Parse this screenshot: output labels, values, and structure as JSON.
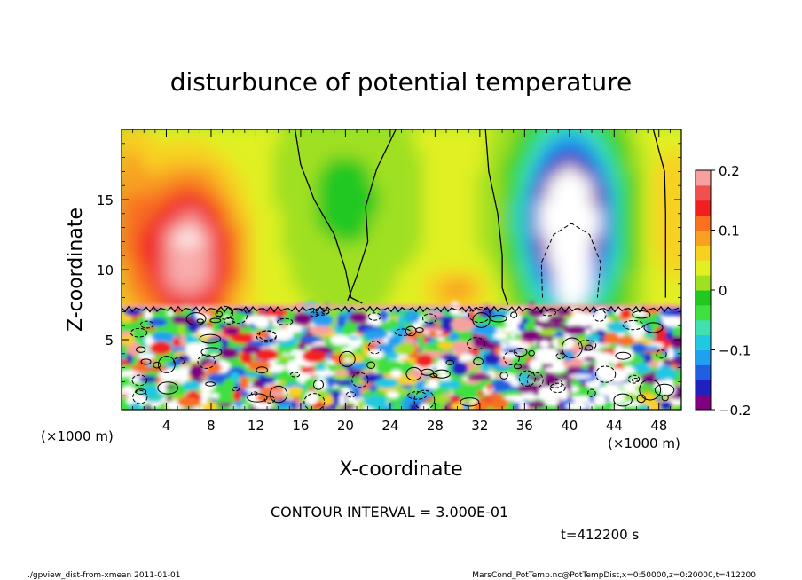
{
  "chart_data": {
    "type": "heatmap",
    "title": "disturbunce of potential temperature",
    "xlabel": "X-coordinate",
    "ylabel": "Z-coordinate",
    "x_unit": "(×1000 m)",
    "y_unit": "(×1000 m)",
    "xlim": [
      0,
      50
    ],
    "ylim": [
      0,
      20
    ],
    "x_ticks": [
      4,
      8,
      12,
      16,
      20,
      24,
      28,
      32,
      36,
      40,
      44,
      48
    ],
    "y_ticks": [
      5,
      10,
      15
    ],
    "colorbar": {
      "range": [
        -0.2,
        0.2
      ],
      "tick_values": [
        0.2,
        0.1,
        0,
        -0.1,
        -0.2
      ],
      "tick_labels": [
        "0.2",
        "0.1",
        "0",
        "−0.1",
        "−0.2"
      ],
      "colors": [
        "#800080",
        "#2020c0",
        "#2060e0",
        "#20a0f0",
        "#20c8e0",
        "#40e0b0",
        "#40e040",
        "#20c820",
        "#a0e020",
        "#e0f020",
        "#f8d020",
        "#f8a020",
        "#f87020",
        "#f02020",
        "#f05050",
        "#f8a0a0"
      ]
    },
    "contour_interval_text": "CONTOUR INTERVAL = 3.000E-01",
    "time_text": "t=412200 s",
    "features": [
      {
        "name": "warm anomaly",
        "x_center": 6,
        "z_center": 12,
        "value": 0.17
      },
      {
        "name": "cold anomaly",
        "x_center": 40,
        "z_center": 13,
        "value": -0.25
      },
      {
        "name": "neutral band",
        "x_center": 18,
        "z_center": 14,
        "value": 0.0
      }
    ]
  },
  "footer": {
    "left": "./gpview_dist-from-xmean 2011-01-01",
    "right": "MarsCond_PotTemp.nc@PotTempDist,x=0:50000,z=0:20000,t=412200"
  }
}
